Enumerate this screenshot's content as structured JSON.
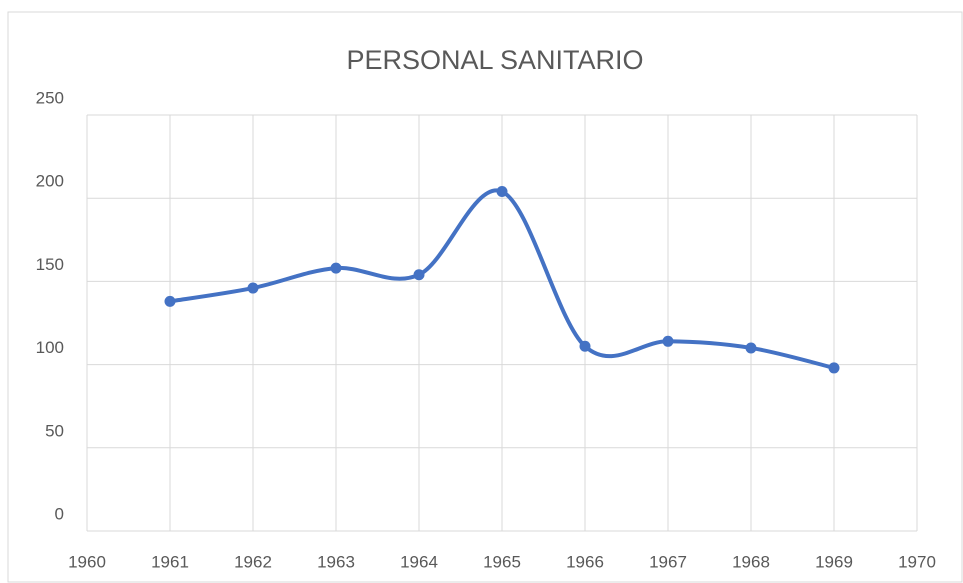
{
  "chart_data": {
    "type": "line",
    "title": "PERSONAL SANITARIO",
    "x": [
      1961,
      1962,
      1963,
      1964,
      1965,
      1966,
      1967,
      1968,
      1969
    ],
    "series": [
      {
        "name": "PERSONAL SANITARIO",
        "color": "#4472c4",
        "values": [
          138,
          146,
          158,
          154,
          204,
          111,
          114,
          110,
          98
        ]
      }
    ],
    "xlim": [
      1960,
      1970
    ],
    "xticks": [
      1960,
      1961,
      1962,
      1963,
      1964,
      1965,
      1966,
      1967,
      1968,
      1969,
      1970
    ],
    "ylim": [
      0,
      250
    ],
    "yticks": [
      0,
      50,
      100,
      150,
      200,
      250
    ],
    "grid": true,
    "smooth": true,
    "markers": true
  }
}
